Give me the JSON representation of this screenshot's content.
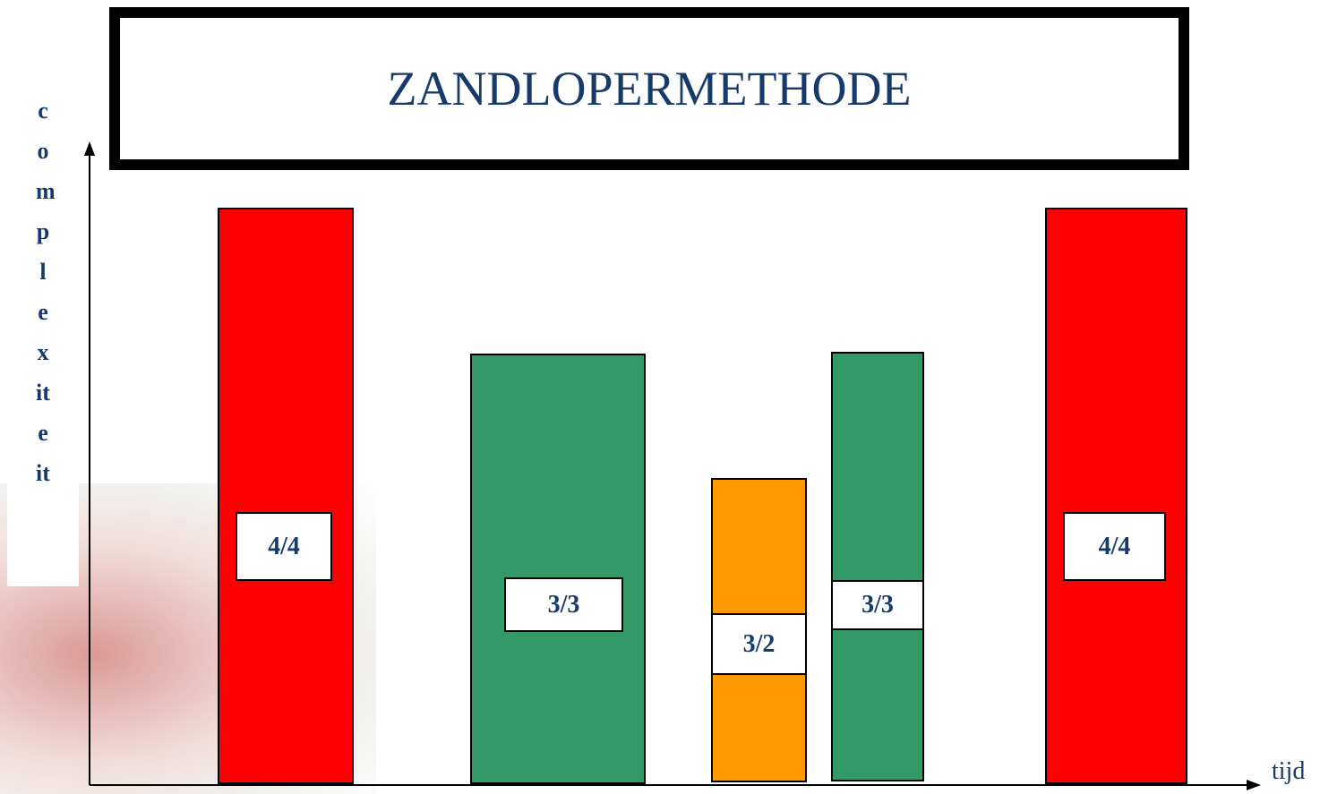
{
  "title": "ZANDLOPERMETHODE",
  "y_axis_label": "complexiteit",
  "x_axis_label": "tijd",
  "blocks": [
    {
      "label": "4/4"
    },
    {
      "label": "3/3"
    },
    {
      "label": "3/2"
    },
    {
      "label": "3/3"
    },
    {
      "label": "4/4"
    }
  ]
}
